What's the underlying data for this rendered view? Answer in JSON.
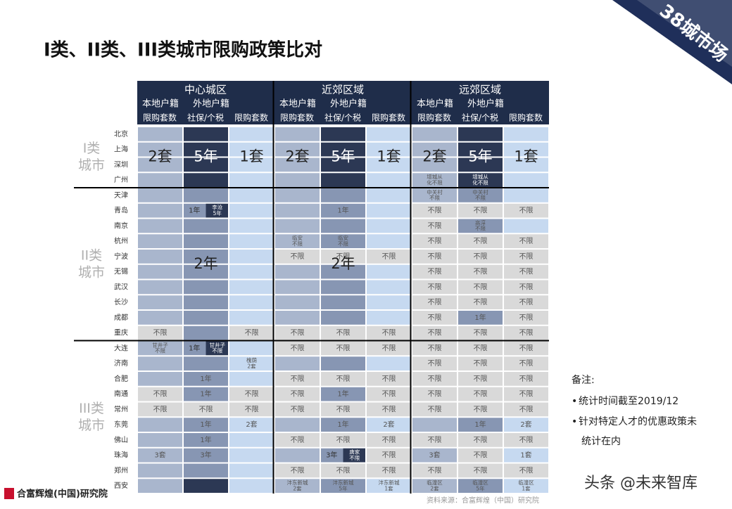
{
  "title": "I类、II类、III类城市限购政策比对",
  "badge": "38城市场",
  "zones": [
    "中心城区",
    "近郊区域",
    "远郊区域"
  ],
  "sub_headers": [
    "本地户籍",
    "外地户籍"
  ],
  "col_headers": [
    "限购套数",
    "社保/个税",
    "限购套数"
  ],
  "groups": [
    {
      "label": [
        "I类",
        "城市"
      ],
      "big_labels": [
        "2套",
        "5年",
        "1套",
        "2套",
        "5年",
        "1套",
        "2套",
        "5年",
        "1套"
      ],
      "rows": [
        {
          "city": "北京",
          "cells": [
            null,
            null,
            null,
            null,
            null,
            null,
            null,
            null,
            null
          ]
        },
        {
          "city": "上海",
          "cells": [
            null,
            null,
            null,
            null,
            null,
            null,
            null,
            null,
            null
          ]
        },
        {
          "city": "深圳",
          "cells": [
            null,
            null,
            null,
            null,
            null,
            null,
            null,
            null,
            null
          ]
        },
        {
          "city": "广州",
          "cells": [
            null,
            null,
            null,
            null,
            null,
            null,
            "增城从\n化不限",
            "增城从\n化不限",
            null
          ]
        }
      ]
    },
    {
      "label": [
        "II类",
        "城市"
      ],
      "big_labels": [
        null,
        "2年",
        null,
        null,
        "2年",
        null,
        null,
        null,
        null
      ],
      "rows": [
        {
          "city": "天津",
          "cells": [
            null,
            null,
            null,
            null,
            null,
            null,
            "中关村\n不限",
            "中关村\n不限",
            null
          ]
        },
        {
          "city": "青岛",
          "cells": [
            null,
            [
              "1年",
              "李沧\n5年"
            ],
            null,
            null,
            "1年",
            null,
            "不限",
            "不限",
            "不限"
          ]
        },
        {
          "city": "南京",
          "cells": [
            null,
            null,
            null,
            null,
            null,
            null,
            "不限",
            "高淳\n不限",
            null
          ]
        },
        {
          "city": "杭州",
          "cells": [
            null,
            null,
            null,
            "临安\n不限",
            "临安\n不限",
            null,
            "不限",
            "不限",
            "不限"
          ]
        },
        {
          "city": "宁波",
          "cells": [
            null,
            null,
            null,
            "不限",
            "不限",
            "不限",
            "不限",
            "不限",
            "不限"
          ]
        },
        {
          "city": "无锡",
          "cells": [
            null,
            null,
            null,
            null,
            null,
            null,
            "不限",
            "不限",
            "不限"
          ]
        },
        {
          "city": "武汉",
          "cells": [
            null,
            null,
            null,
            null,
            null,
            null,
            "不限",
            "不限",
            "不限"
          ]
        },
        {
          "city": "长沙",
          "cells": [
            null,
            null,
            null,
            null,
            null,
            null,
            "不限",
            "不限",
            "不限"
          ]
        },
        {
          "city": "成都",
          "cells": [
            null,
            null,
            null,
            null,
            null,
            null,
            "不限",
            "1年",
            "不限"
          ]
        },
        {
          "city": "重庆",
          "cells": [
            "不限",
            null,
            "不限",
            "不限",
            "不限",
            "不限",
            "不限",
            "不限",
            "不限"
          ]
        }
      ]
    },
    {
      "label": [
        "III类",
        "城市"
      ],
      "big_labels": [
        null,
        null,
        null,
        null,
        null,
        null,
        null,
        null,
        null
      ],
      "rows": [
        {
          "city": "大连",
          "cells": [
            "甘井子\n不限",
            [
              "1年",
              "甘井子\n不限"
            ],
            null,
            "不限",
            "不限",
            "不限",
            "不限",
            "不限",
            "不限"
          ]
        },
        {
          "city": "济南",
          "cells": [
            null,
            null,
            "槐荫\n2套",
            null,
            null,
            null,
            "不限",
            "不限",
            "不限"
          ]
        },
        {
          "city": "合肥",
          "cells": [
            null,
            "1年",
            null,
            "不限",
            "不限",
            "不限",
            "不限",
            "不限",
            "不限"
          ]
        },
        {
          "city": "南通",
          "cells": [
            "不限",
            "1年",
            "不限",
            "不限",
            "1年",
            "不限",
            "不限",
            "不限",
            "不限"
          ]
        },
        {
          "city": "常州",
          "cells": [
            "不限",
            "不限",
            "不限",
            "不限",
            "不限",
            "不限",
            "不限",
            "不限",
            "不限"
          ]
        },
        {
          "city": "东莞",
          "cells": [
            null,
            "1年",
            "2套",
            null,
            "1年",
            "2套",
            null,
            "1年",
            "2套"
          ]
        },
        {
          "city": "佛山",
          "cells": [
            null,
            "1年",
            null,
            "不限",
            "不限",
            "不限",
            "不限",
            "不限",
            "不限"
          ]
        },
        {
          "city": "珠海",
          "cells": [
            "3套",
            "3年",
            null,
            null,
            [
              "3年",
              "唐家\n不限"
            ],
            "不限",
            "3套",
            "不限",
            "1套"
          ]
        },
        {
          "city": "郑州",
          "cells": [
            null,
            null,
            null,
            "不限",
            "不限",
            "不限",
            "不限",
            "不限",
            "不限"
          ]
        },
        {
          "city": "西安",
          "cells": [
            null,
            null,
            null,
            "沣东新城\n2套",
            "沣东新城\n5年",
            "沣东新城\n1套",
            "临潼区\n2套",
            "临潼区\n5年",
            "临潼区\n1套"
          ]
        }
      ]
    }
  ],
  "notes": {
    "title": "备注:",
    "items": [
      "统计时间截至2019/12",
      "针对特定人才的优惠政策未统计在内"
    ]
  },
  "source": "资料来源：合富辉煌（中国）研究院",
  "logo": "合富辉煌(中国)研究院",
  "watermark": "头条 @未来智库"
}
